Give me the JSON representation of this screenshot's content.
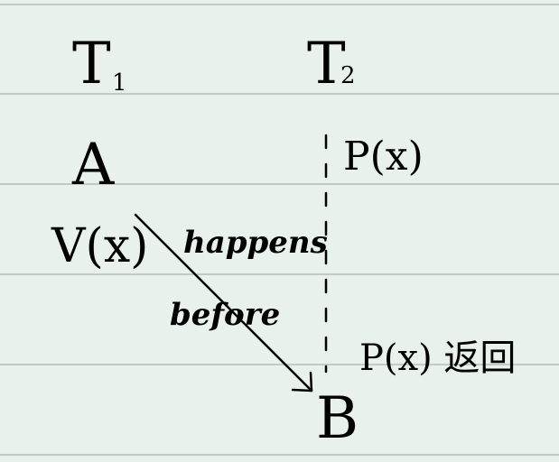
{
  "colors": {
    "paper": "#e9f1ec",
    "rule": "#c3cbc7",
    "ink": "#000000"
  },
  "thread1": {
    "title": "T",
    "subscript": "1",
    "event_a": "A",
    "event_v": "V(x)"
  },
  "thread2": {
    "title": "T",
    "subscript": "2",
    "event_p": "P(x)",
    "event_p_return": "P(x) 返回",
    "event_b": "B"
  },
  "arrow": {
    "label_line1": "happens",
    "label_line2": "before"
  }
}
